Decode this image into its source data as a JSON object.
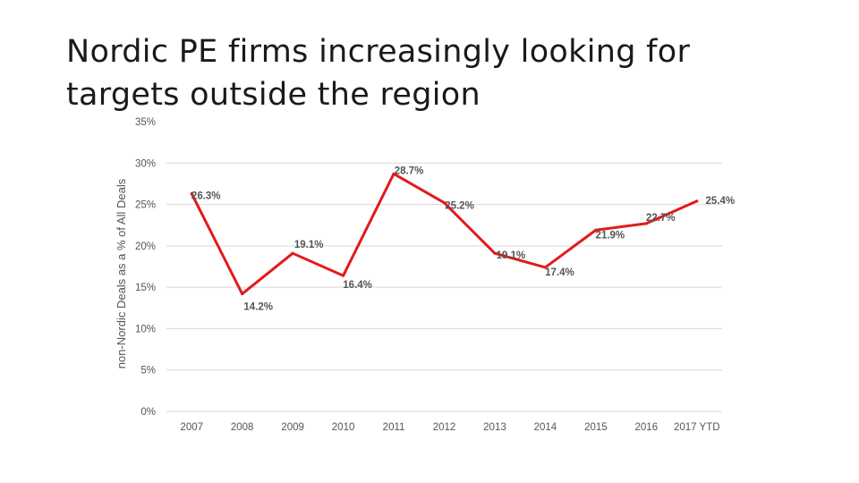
{
  "slide": {
    "title": "Nordic PE firms increasingly looking for targets outside the region"
  },
  "colors": {
    "line": "#e21a1a",
    "grid": "#d9d9d9",
    "text": "#555555"
  },
  "chart_data": {
    "type": "line",
    "title": "",
    "xlabel": "",
    "ylabel": "non-Nordic Deals as a % of All Deals",
    "categories": [
      "2007",
      "2008",
      "2009",
      "2010",
      "2011",
      "2012",
      "2013",
      "2014",
      "2015",
      "2016",
      "2017 YTD"
    ],
    "series": [
      {
        "name": "non-Nordic Deals as a % of All Deals",
        "values": [
          26.3,
          14.2,
          19.1,
          16.4,
          28.7,
          25.2,
          19.1,
          17.4,
          21.9,
          22.7,
          25.4
        ],
        "labels": [
          "26.3%",
          "14.2%",
          "19.1%",
          "16.4%",
          "28.7%",
          "25.2%",
          "19.1%",
          "17.4%",
          "21.9%",
          "22.7%",
          "25.4%"
        ]
      }
    ],
    "ylim": [
      0,
      35
    ],
    "yticks": [
      0,
      5,
      10,
      15,
      20,
      25,
      30,
      35
    ],
    "ytick_labels": [
      "0%",
      "5%",
      "10%",
      "15%",
      "20%",
      "25%",
      "30%",
      "35%"
    ],
    "grid": true,
    "legend": "none"
  }
}
